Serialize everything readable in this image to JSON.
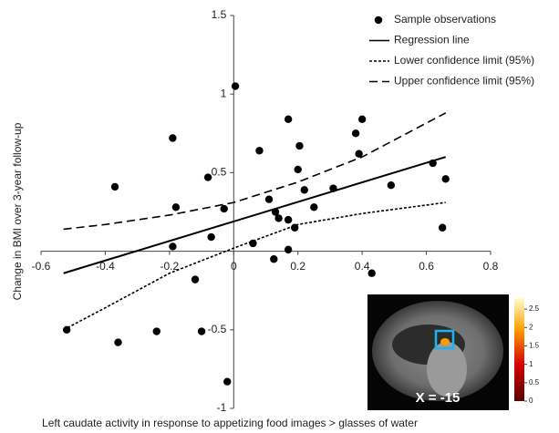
{
  "chart_data": {
    "type": "scatter",
    "xlabel": "Left caudate activity in response to appetizing food images > glasses of water",
    "ylabel": "Change in BMI over 3-year follow-up",
    "xlim": [
      -0.6,
      0.8
    ],
    "ylim": [
      -1,
      1.5
    ],
    "xticks": [
      -0.6,
      -0.4,
      -0.2,
      0,
      0.2,
      0.4,
      0.6,
      0.8
    ],
    "yticks": [
      -1,
      -0.5,
      0.5,
      1,
      1.5
    ],
    "legend": "upper right",
    "series": [
      {
        "name": "Sample observations",
        "color": "#000000",
        "kind": "points",
        "x": [
          -0.52,
          -0.37,
          -0.36,
          -0.24,
          -0.19,
          -0.18,
          -0.19,
          -0.12,
          -0.1,
          -0.08,
          -0.07,
          -0.03,
          -0.02,
          0.005,
          0.06,
          0.08,
          0.11,
          0.125,
          0.13,
          0.14,
          0.17,
          0.17,
          0.17,
          0.19,
          0.2,
          0.205,
          0.22,
          0.25,
          0.31,
          0.38,
          0.39,
          0.4,
          0.43,
          0.49,
          0.62,
          0.65,
          0.66
        ],
        "values": [
          -0.5,
          0.41,
          -0.58,
          -0.51,
          0.72,
          0.28,
          0.03,
          -0.18,
          -0.51,
          0.47,
          0.09,
          0.27,
          -0.83,
          1.05,
          0.05,
          0.64,
          0.33,
          -0.05,
          0.25,
          0.21,
          0.84,
          0.2,
          0.01,
          0.15,
          0.52,
          0.67,
          0.39,
          0.28,
          0.4,
          0.75,
          0.62,
          0.84,
          -0.14,
          0.42,
          0.56,
          0.15,
          0.46
        ]
      },
      {
        "name": "Regression line",
        "color": "#000000",
        "kind": "line",
        "dash": "solid",
        "x": [
          -0.53,
          0.66
        ],
        "values": [
          -0.14,
          0.6
        ]
      },
      {
        "name": "Lower confidence limit (95%)",
        "color": "#000000",
        "kind": "line",
        "dash": "dotted",
        "x": [
          -0.53,
          -0.4,
          -0.2,
          0,
          0.2,
          0.4,
          0.66
        ],
        "values": [
          -0.5,
          -0.36,
          -0.14,
          0.02,
          0.17,
          0.24,
          0.31
        ]
      },
      {
        "name": "Upper confidence limit (95%)",
        "color": "#000000",
        "kind": "line",
        "dash": "dashed",
        "x": [
          -0.53,
          -0.4,
          -0.2,
          0,
          0.2,
          0.4,
          0.66
        ],
        "values": [
          0.14,
          0.17,
          0.23,
          0.31,
          0.44,
          0.6,
          0.88
        ]
      }
    ],
    "inset": {
      "label": "X = -15",
      "colorbar_lim": [
        0,
        2.8
      ],
      "colorbar_ticks": [
        0,
        0.5,
        1,
        1.5,
        2,
        2.5
      ]
    }
  }
}
